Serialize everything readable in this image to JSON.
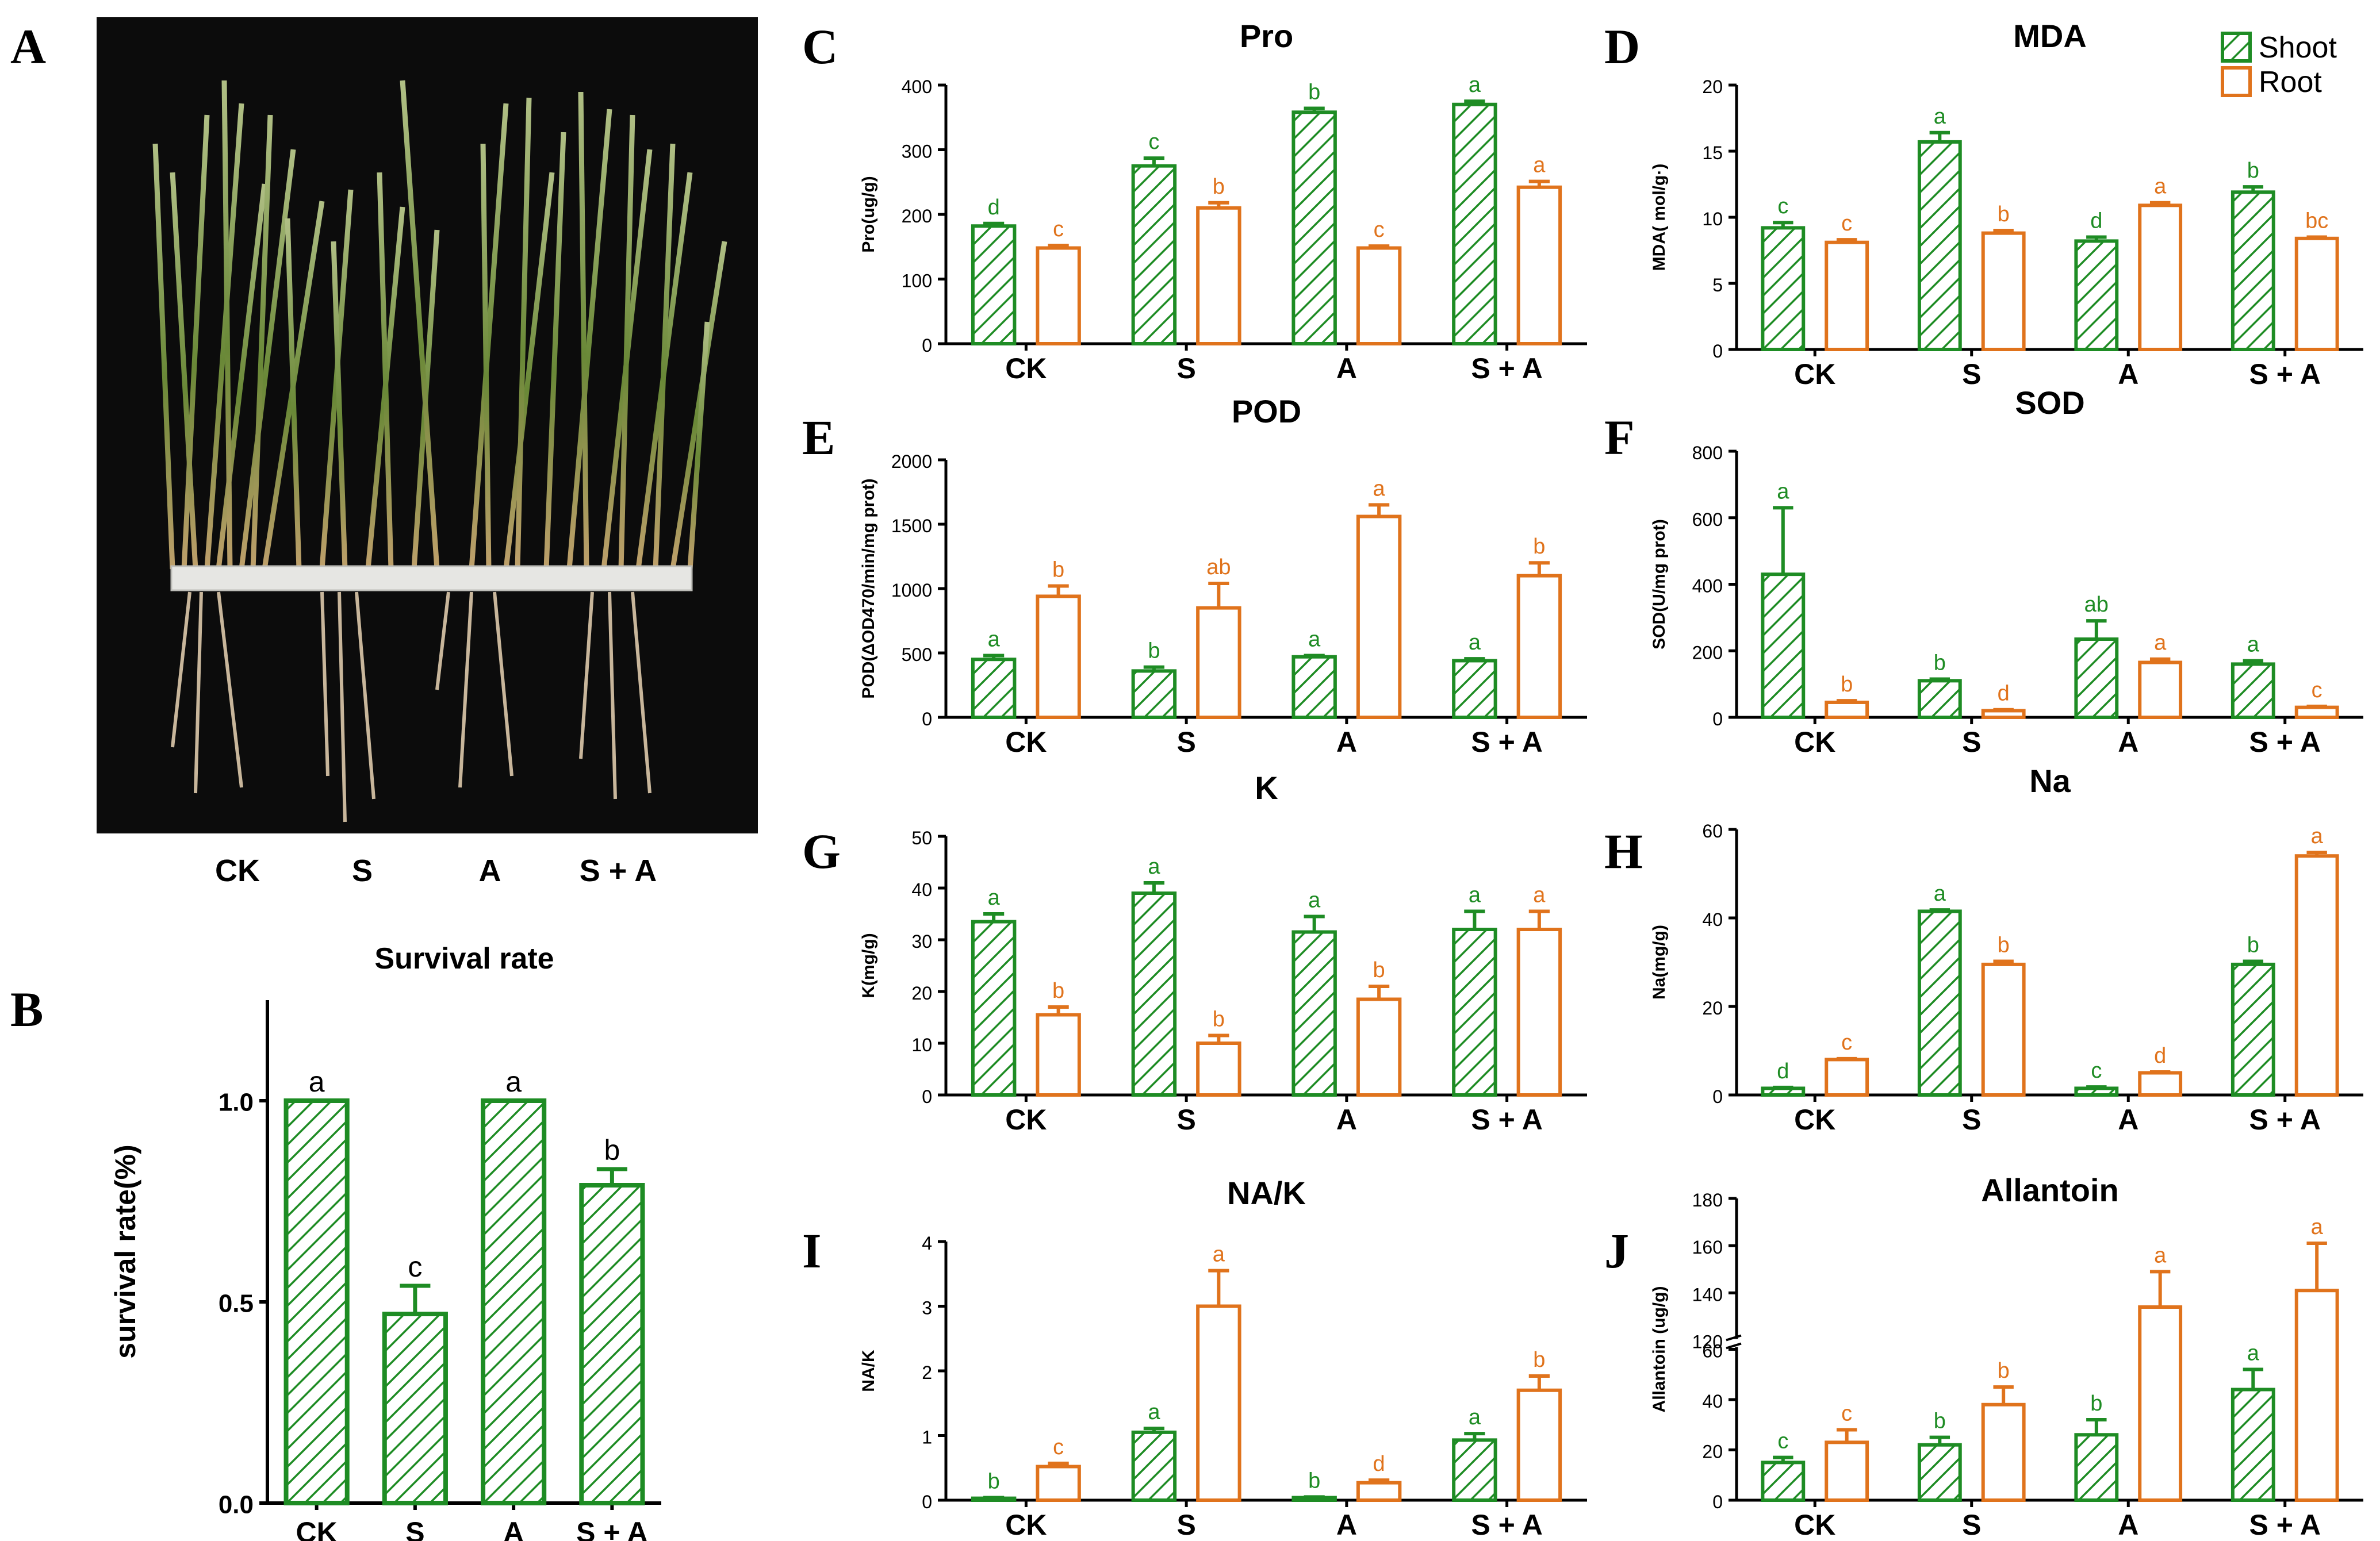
{
  "figure": {
    "panel_letters": [
      "A",
      "B",
      "C",
      "D",
      "E",
      "F",
      "G",
      "H",
      "I",
      "J"
    ],
    "legend": {
      "shoot": "Shoot",
      "root": "Root"
    },
    "colors": {
      "shoot": "#1e8c24",
      "root": "#e0731c",
      "axis": "#000000"
    },
    "photo": {
      "labels": [
        "CK",
        "S",
        "A",
        "S + A"
      ]
    }
  },
  "chart_data": [
    {
      "id": "B",
      "type": "bar",
      "title": "Survival rate",
      "xlabel": "",
      "ylabel": "survival rate(%)",
      "categories": [
        "CK",
        "S",
        "A",
        "S + A"
      ],
      "ylim": [
        0,
        1.25
      ],
      "yticks": [
        "0.0",
        "0.5",
        "1.0"
      ],
      "series": [
        {
          "values": [
            1.0,
            0.47,
            1.0,
            0.79
          ],
          "errors": [
            0,
            0.07,
            0,
            0.04
          ],
          "letters": [
            "a",
            "c",
            "a",
            "b"
          ]
        }
      ]
    },
    {
      "id": "C",
      "type": "bar",
      "title": "Pro",
      "xlabel": "",
      "ylabel": "Pro(ug/g)",
      "categories": [
        "CK",
        "S",
        "A",
        "S + A"
      ],
      "ylim": [
        0,
        400
      ],
      "yticks": [
        "0",
        "100",
        "200",
        "300",
        "400"
      ],
      "series": [
        {
          "name": "Shoot",
          "values": [
            182,
            275,
            358,
            370
          ],
          "errors": [
            4,
            12,
            6,
            5
          ],
          "letters": [
            "d",
            "c",
            "b",
            "a"
          ]
        },
        {
          "name": "Root",
          "values": [
            148,
            210,
            148,
            242
          ],
          "errors": [
            4,
            8,
            3,
            9
          ],
          "letters": [
            "c",
            "b",
            "c",
            "a"
          ]
        }
      ]
    },
    {
      "id": "D",
      "type": "bar",
      "title": "MDA",
      "xlabel": "",
      "ylabel": "MDA( mol/g·)",
      "categories": [
        "CK",
        "S",
        "A",
        "S + A"
      ],
      "ylim": [
        0,
        20
      ],
      "yticks": [
        "0",
        "5",
        "10",
        "15",
        "20"
      ],
      "series": [
        {
          "name": "Shoot",
          "values": [
            9.2,
            15.7,
            8.2,
            11.9
          ],
          "errors": [
            0.4,
            0.7,
            0.3,
            0.4
          ],
          "letters": [
            "c",
            "a",
            "d",
            "b"
          ]
        },
        {
          "name": "Root",
          "values": [
            8.1,
            8.8,
            10.9,
            8.4
          ],
          "errors": [
            0.2,
            0.2,
            0.2,
            0.1
          ],
          "letters": [
            "c",
            "b",
            "a",
            "bc"
          ]
        }
      ]
    },
    {
      "id": "E",
      "type": "bar",
      "title": "POD",
      "xlabel": "",
      "ylabel": "POD(ΔOD470/min/mg prot)",
      "categories": [
        "CK",
        "S",
        "A",
        "S + A"
      ],
      "ylim": [
        0,
        2000
      ],
      "yticks": [
        "0",
        "500",
        "1000",
        "1500",
        "2000"
      ],
      "series": [
        {
          "name": "Shoot",
          "values": [
            450,
            360,
            470,
            440
          ],
          "errors": [
            30,
            30,
            10,
            15
          ],
          "letters": [
            "a",
            "b",
            "a",
            "a"
          ]
        },
        {
          "name": "Root",
          "values": [
            940,
            850,
            1560,
            1100
          ],
          "errors": [
            80,
            190,
            90,
            100
          ],
          "letters": [
            "b",
            "ab",
            "a",
            "b"
          ]
        }
      ]
    },
    {
      "id": "F",
      "type": "bar",
      "title": "SOD",
      "xlabel": "",
      "ylabel": "SOD(U/mg prot)",
      "categories": [
        "CK",
        "S",
        "A",
        "S + A"
      ],
      "ylim": [
        0,
        800
      ],
      "yticks": [
        "0",
        "200",
        "400",
        "600",
        "800"
      ],
      "series": [
        {
          "name": "Shoot",
          "values": [
            430,
            110,
            235,
            160
          ],
          "errors": [
            200,
            5,
            55,
            10
          ],
          "letters": [
            "a",
            "b",
            "ab",
            "a"
          ]
        },
        {
          "name": "Root",
          "values": [
            45,
            20,
            165,
            30
          ],
          "errors": [
            5,
            3,
            10,
            3
          ],
          "letters": [
            "b",
            "d",
            "a",
            "c"
          ]
        }
      ]
    },
    {
      "id": "G",
      "type": "bar",
      "title": "K",
      "xlabel": "",
      "ylabel": "K(mg/g)",
      "categories": [
        "CK",
        "S",
        "A",
        "S + A"
      ],
      "ylim": [
        0,
        50
      ],
      "yticks": [
        "0",
        "10",
        "20",
        "30",
        "40",
        "50"
      ],
      "series": [
        {
          "name": "Shoot",
          "values": [
            33.5,
            39,
            31.5,
            32
          ],
          "errors": [
            1.5,
            2,
            3,
            3.5
          ],
          "letters": [
            "a",
            "a",
            "a",
            "a"
          ]
        },
        {
          "name": "Root",
          "values": [
            15.5,
            10,
            18.5,
            32
          ],
          "errors": [
            1.5,
            1.5,
            2.5,
            3.5
          ],
          "letters": [
            "b",
            "b",
            "b",
            "a"
          ]
        }
      ]
    },
    {
      "id": "H",
      "type": "bar",
      "title": "Na",
      "xlabel": "",
      "ylabel": "Na(mg/g)",
      "categories": [
        "CK",
        "S",
        "A",
        "S + A"
      ],
      "ylim": [
        0,
        60
      ],
      "yticks": [
        "0",
        "20",
        "40",
        "60"
      ],
      "series": [
        {
          "name": "Shoot",
          "values": [
            1.5,
            41.5,
            1.5,
            29.5
          ],
          "errors": [
            0.2,
            0.3,
            0.3,
            0.7
          ],
          "letters": [
            "d",
            "a",
            "c",
            "b"
          ]
        },
        {
          "name": "Root",
          "values": [
            8,
            29.5,
            5,
            54
          ],
          "errors": [
            0.2,
            0.7,
            0.2,
            0.8
          ],
          "letters": [
            "c",
            "b",
            "d",
            "a"
          ]
        }
      ]
    },
    {
      "id": "I",
      "type": "bar",
      "title": "NA/K",
      "xlabel": "",
      "ylabel": "NA/K",
      "categories": [
        "CK",
        "S",
        "A",
        "S + A"
      ],
      "ylim": [
        0,
        4
      ],
      "yticks": [
        "0",
        "1",
        "2",
        "3",
        "4"
      ],
      "series": [
        {
          "name": "Shoot",
          "values": [
            0.03,
            1.05,
            0.04,
            0.93
          ],
          "errors": [
            0.01,
            0.06,
            0.01,
            0.1
          ],
          "letters": [
            "b",
            "a",
            "b",
            "a"
          ]
        },
        {
          "name": "Root",
          "values": [
            0.52,
            3.0,
            0.27,
            1.7
          ],
          "errors": [
            0.05,
            0.55,
            0.04,
            0.22
          ],
          "letters": [
            "c",
            "a",
            "d",
            "b"
          ]
        }
      ]
    },
    {
      "id": "J",
      "type": "bar",
      "title": "Allantoin",
      "xlabel": "",
      "ylabel": "Allantoin (ug/g)",
      "categories": [
        "CK",
        "S",
        "A",
        "S + A"
      ],
      "ylim": [
        0,
        180
      ],
      "axis_break": [
        60,
        120
      ],
      "yticks_lower": [
        "0",
        "20",
        "40",
        "60"
      ],
      "yticks_upper": [
        "120",
        "140",
        "160",
        "180"
      ],
      "series": [
        {
          "name": "Shoot",
          "values": [
            15,
            22,
            26,
            44
          ],
          "errors": [
            2,
            3,
            6,
            8
          ],
          "letters": [
            "c",
            "b",
            "b",
            "a"
          ]
        },
        {
          "name": "Root",
          "values": [
            23,
            38,
            134,
            141
          ],
          "errors": [
            5,
            7,
            15,
            20
          ],
          "letters": [
            "c",
            "b",
            "a",
            "a"
          ]
        }
      ]
    }
  ]
}
